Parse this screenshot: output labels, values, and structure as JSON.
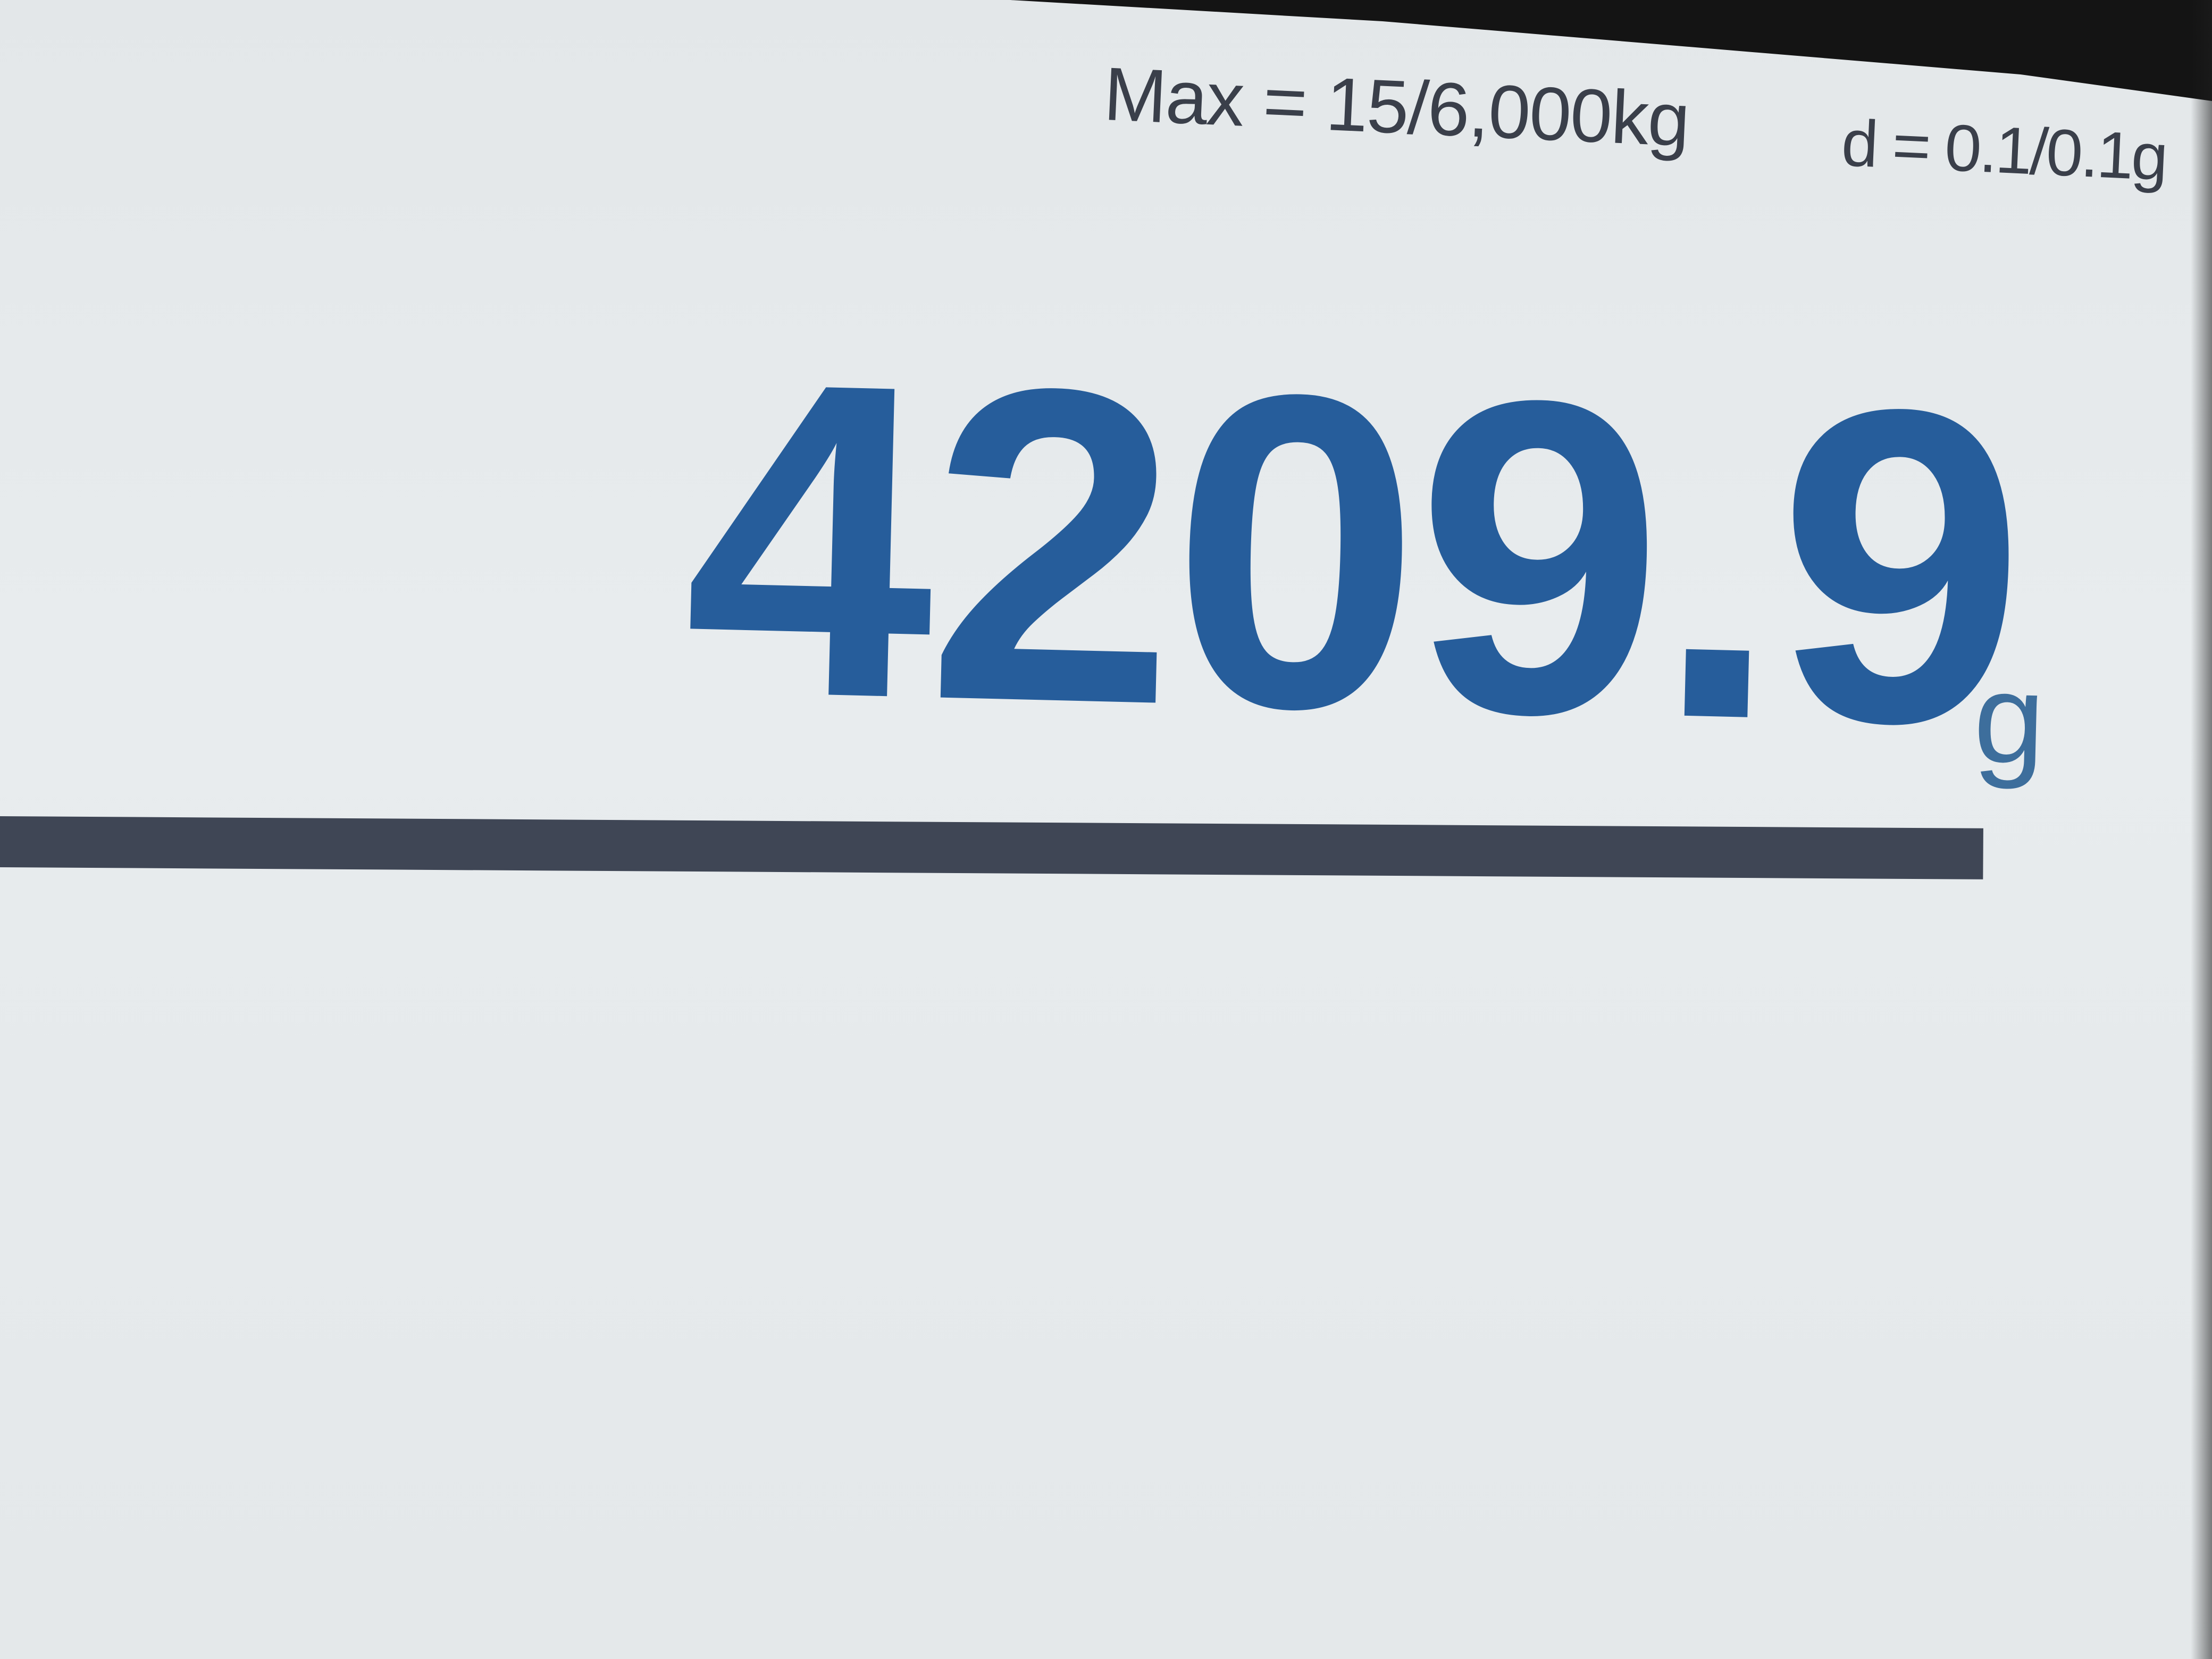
{
  "capacity": {
    "max_text": "Max = 15/6,000kg",
    "division_text": "d = 0.1/0.1g"
  },
  "reading": {
    "value": "4209.9",
    "unit": "g"
  },
  "colors": {
    "reading": "#265d9b",
    "divider": "#3f4655",
    "background": "#e6eaec"
  }
}
